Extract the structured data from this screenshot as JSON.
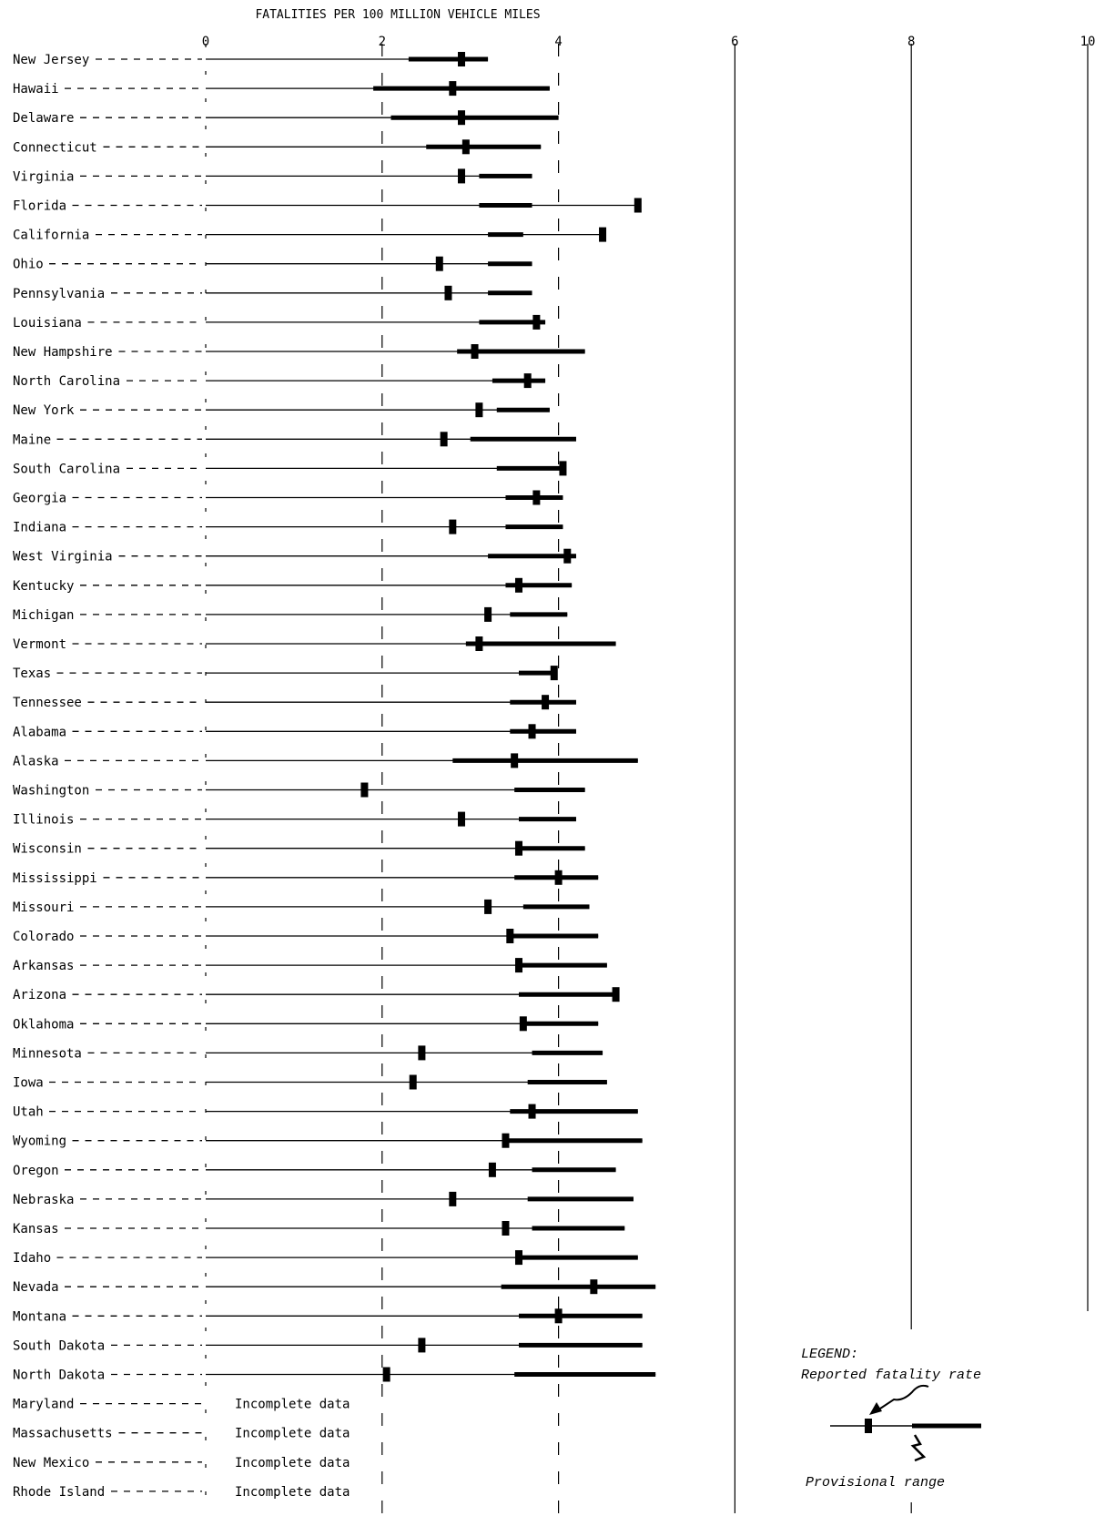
{
  "chart_data": {
    "type": "range-dot",
    "title": "FATALITIES PER 100 MILLION VEHICLE MILES",
    "xlim": [
      0,
      10
    ],
    "x_ticks": [
      "0",
      "2",
      "4",
      "6",
      "8",
      "10"
    ],
    "grid": "vertical lines at 2, 4, 6, 8, 10",
    "rows": [
      {
        "state": "New Jersey",
        "rate": 2.9,
        "range": [
          2.3,
          3.2
        ]
      },
      {
        "state": "Hawaii",
        "rate": 2.8,
        "range": [
          1.9,
          3.9
        ]
      },
      {
        "state": "Delaware",
        "rate": 2.9,
        "range": [
          2.1,
          4.0
        ]
      },
      {
        "state": "Connecticut",
        "rate": 2.95,
        "range": [
          2.5,
          3.8
        ]
      },
      {
        "state": "Virginia",
        "rate": 2.9,
        "range": [
          3.1,
          3.7
        ]
      },
      {
        "state": "Florida",
        "rate": 4.9,
        "range": [
          3.1,
          3.7
        ]
      },
      {
        "state": "California",
        "rate": 4.5,
        "range": [
          3.2,
          3.6
        ]
      },
      {
        "state": "Ohio",
        "rate": 2.65,
        "range": [
          3.2,
          3.7
        ]
      },
      {
        "state": "Pennsylvania",
        "rate": 2.75,
        "range": [
          3.2,
          3.7
        ]
      },
      {
        "state": "Louisiana",
        "rate": 3.75,
        "range": [
          3.1,
          3.85
        ]
      },
      {
        "state": "New Hampshire",
        "rate": 3.05,
        "range": [
          2.85,
          4.3
        ]
      },
      {
        "state": "North Carolina",
        "rate": 3.65,
        "range": [
          3.25,
          3.85
        ]
      },
      {
        "state": "New York",
        "rate": 3.1,
        "range": [
          3.3,
          3.9
        ]
      },
      {
        "state": "Maine",
        "rate": 2.7,
        "range": [
          3.0,
          4.2
        ]
      },
      {
        "state": "South Carolina",
        "rate": 4.05,
        "range": [
          3.3,
          4.05
        ]
      },
      {
        "state": "Georgia",
        "rate": 3.75,
        "range": [
          3.4,
          4.05
        ]
      },
      {
        "state": "Indiana",
        "rate": 2.8,
        "range": [
          3.4,
          4.05
        ]
      },
      {
        "state": "West Virginia",
        "rate": 4.1,
        "range": [
          3.2,
          4.2
        ]
      },
      {
        "state": "Kentucky",
        "rate": 3.55,
        "range": [
          3.4,
          4.15
        ]
      },
      {
        "state": "Michigan",
        "rate": 3.2,
        "range": [
          3.45,
          4.1
        ]
      },
      {
        "state": "Vermont",
        "rate": 3.1,
        "range": [
          2.95,
          4.65
        ]
      },
      {
        "state": "Texas",
        "rate": 3.95,
        "range": [
          3.55,
          3.95
        ]
      },
      {
        "state": "Tennessee",
        "rate": 3.85,
        "range": [
          3.45,
          4.2
        ]
      },
      {
        "state": "Alabama",
        "rate": 3.7,
        "range": [
          3.45,
          4.2
        ]
      },
      {
        "state": "Alaska",
        "rate": 3.5,
        "range": [
          2.8,
          4.9
        ]
      },
      {
        "state": "Washington",
        "rate": 1.8,
        "range": [
          3.5,
          4.3
        ]
      },
      {
        "state": "Illinois",
        "rate": 2.9,
        "range": [
          3.55,
          4.2
        ]
      },
      {
        "state": "Wisconsin",
        "rate": 3.55,
        "range": [
          3.55,
          4.3
        ]
      },
      {
        "state": "Mississippi",
        "rate": 4.0,
        "range": [
          3.5,
          4.45
        ]
      },
      {
        "state": "Missouri",
        "rate": 3.2,
        "range": [
          3.6,
          4.35
        ]
      },
      {
        "state": "Colorado",
        "rate": 3.45,
        "range": [
          3.45,
          4.45
        ]
      },
      {
        "state": "Arkansas",
        "rate": 3.55,
        "range": [
          3.55,
          4.55
        ]
      },
      {
        "state": "Arizona",
        "rate": 4.65,
        "range": [
          3.55,
          4.65
        ]
      },
      {
        "state": "Oklahoma",
        "rate": 3.6,
        "range": [
          3.6,
          4.45
        ]
      },
      {
        "state": "Minnesota",
        "rate": 2.45,
        "range": [
          3.7,
          4.5
        ]
      },
      {
        "state": "Iowa",
        "rate": 2.35,
        "range": [
          3.65,
          4.55
        ]
      },
      {
        "state": "Utah",
        "rate": 3.7,
        "range": [
          3.45,
          4.9
        ]
      },
      {
        "state": "Wyoming",
        "rate": 3.4,
        "range": [
          3.4,
          4.95
        ]
      },
      {
        "state": "Oregon",
        "rate": 3.25,
        "range": [
          3.7,
          4.65
        ]
      },
      {
        "state": "Nebraska",
        "rate": 2.8,
        "range": [
          3.65,
          4.85
        ]
      },
      {
        "state": "Kansas",
        "rate": 3.4,
        "range": [
          3.7,
          4.75
        ]
      },
      {
        "state": "Idaho",
        "rate": 3.55,
        "range": [
          3.55,
          4.9
        ]
      },
      {
        "state": "Nevada",
        "rate": 4.4,
        "range": [
          3.35,
          5.1
        ]
      },
      {
        "state": "Montana",
        "rate": 4.0,
        "range": [
          3.55,
          4.95
        ]
      },
      {
        "state": "South Dakota",
        "rate": 2.45,
        "range": [
          3.55,
          4.95
        ]
      },
      {
        "state": "North Dakota",
        "rate": 2.05,
        "range": [
          3.5,
          5.1
        ]
      }
    ],
    "incomplete_states": [
      {
        "state": "Maryland",
        "note": "Incomplete data"
      },
      {
        "state": "Massachusetts",
        "note": "Incomplete data"
      },
      {
        "state": "New Mexico",
        "note": "Incomplete data"
      },
      {
        "state": "Rhode Island",
        "note": "Incomplete data"
      }
    ],
    "legend": {
      "title": "LEGEND:",
      "rate_label": "Reported fatality rate",
      "range_label": "Provisional range"
    }
  }
}
